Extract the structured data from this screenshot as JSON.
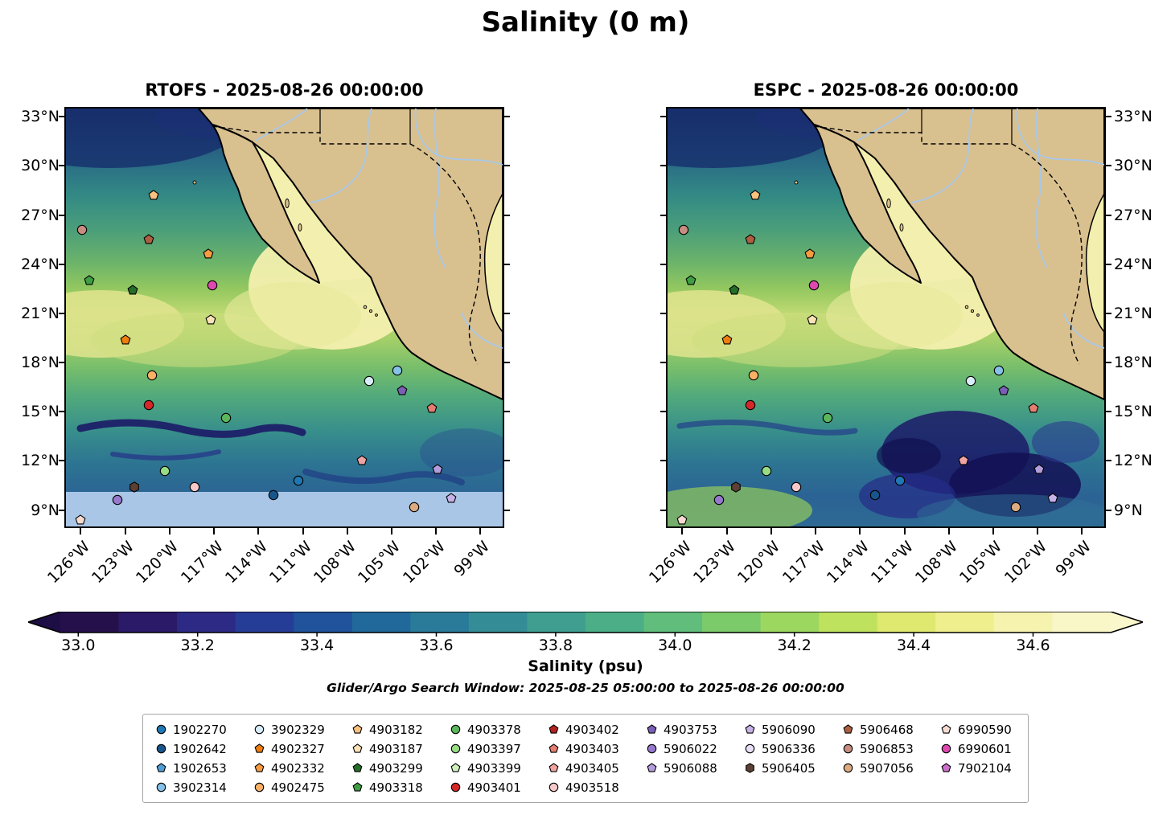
{
  "title": "Salinity (0 m)",
  "panels": [
    {
      "id": "rtofs",
      "title": "RTOFS - 2025-08-26 00:00:00"
    },
    {
      "id": "espc",
      "title": "ESPC - 2025-08-26 00:00:00"
    }
  ],
  "footer": {
    "search_window": "Glider/Argo Search Window: 2025-08-25 05:00:00 to 2025-08-26 00:00:00"
  },
  "chart_data": {
    "type": "heatmap",
    "overlay": "scatter",
    "description": "Sea-surface salinity (0 m) from two models (RTOFS and ESPC) over the eastern Pacific off Mexico and Baja California, with Argo float / glider positions overlaid",
    "lon_range": [
      -127,
      -97.5
    ],
    "lat_range": [
      8.0,
      33.5
    ],
    "xticks": [
      {
        "label": "126°W",
        "lon": -126
      },
      {
        "label": "123°W",
        "lon": -123
      },
      {
        "label": "120°W",
        "lon": -120
      },
      {
        "label": "117°W",
        "lon": -117
      },
      {
        "label": "114°W",
        "lon": -114
      },
      {
        "label": "111°W",
        "lon": -111
      },
      {
        "label": "108°W",
        "lon": -108
      },
      {
        "label": "105°W",
        "lon": -105
      },
      {
        "label": "102°W",
        "lon": -102
      },
      {
        "label": "99°W",
        "lon": -99
      }
    ],
    "yticks": [
      {
        "label": "33°N",
        "lat": 33
      },
      {
        "label": "30°N",
        "lat": 30
      },
      {
        "label": "27°N",
        "lat": 27
      },
      {
        "label": "24°N",
        "lat": 24
      },
      {
        "label": "21°N",
        "lat": 21
      },
      {
        "label": "18°N",
        "lat": 18
      },
      {
        "label": "15°N",
        "lat": 15
      },
      {
        "label": "12°N",
        "lat": 12
      },
      {
        "label": "9°N",
        "lat": 9
      }
    ],
    "colorbar": {
      "label": "Salinity (psu)",
      "vmin": 32.97,
      "vmax": 34.73,
      "under_color": "#1d0e45",
      "over_color": "#faf7cd",
      "tick_values": [
        33.0,
        33.2,
        33.4,
        33.6,
        33.8,
        34.0,
        34.2,
        34.4,
        34.6
      ],
      "tick_labels": [
        "33.0",
        "33.2",
        "33.4",
        "33.6",
        "33.8",
        "34.0",
        "34.2",
        "34.4",
        "34.6"
      ],
      "colors": [
        "#26104c",
        "#2b1a68",
        "#2d2a86",
        "#263d97",
        "#20539c",
        "#21689b",
        "#2a7b99",
        "#348d96",
        "#3f9e90",
        "#4bae87",
        "#60bd7b",
        "#7ccb6b",
        "#9cd75f",
        "#bfe25e",
        "#dfe970",
        "#f0ef8e",
        "#f6f3ae",
        "#f9f6c8"
      ]
    },
    "map_colors": {
      "land": "#d9c08f",
      "coastline": "#000000",
      "river": "#a9c8e9",
      "gulf_high_salinity": "#f3efae",
      "no_data_strip": "#a9c6e6"
    },
    "floats": [
      {
        "id": "1902270",
        "shape": "circle",
        "color": "#1f77b4",
        "lon": -111.3,
        "lat": 10.8
      },
      {
        "id": "1902642",
        "shape": "circle",
        "color": "#17568c",
        "lon": -113.0,
        "lat": 9.9
      },
      {
        "id": "1902653",
        "shape": "pentagon",
        "color": "#4f9fd4",
        "lon": null,
        "lat": null
      },
      {
        "id": "3902314",
        "shape": "circle",
        "color": "#85c1e9",
        "lon": -104.6,
        "lat": 17.5
      },
      {
        "id": "3902329",
        "shape": "circle",
        "color": "#d9ecf9",
        "lon": -106.5,
        "lat": 16.9
      },
      {
        "id": "4902327",
        "shape": "pentagon",
        "color": "#ee7f0e",
        "lon": -123.0,
        "lat": 19.4
      },
      {
        "id": "4902332",
        "shape": "pentagon",
        "color": "#f79b3f",
        "lon": -117.4,
        "lat": 24.6
      },
      {
        "id": "4902475",
        "shape": "circle",
        "color": "#fab166",
        "lon": -121.2,
        "lat": 17.2
      },
      {
        "id": "4903182",
        "shape": "pentagon",
        "color": "#fac17f",
        "lon": -121.1,
        "lat": 28.2
      },
      {
        "id": "4903187",
        "shape": "pentagon",
        "color": "#fbe3b9",
        "lon": -117.2,
        "lat": 20.6
      },
      {
        "id": "4903299",
        "shape": "pentagon",
        "color": "#256d29",
        "lon": -122.5,
        "lat": 22.4
      },
      {
        "id": "4903318",
        "shape": "pentagon",
        "color": "#3f9e42",
        "lon": -125.4,
        "lat": 23.0
      },
      {
        "id": "4903378",
        "shape": "circle",
        "color": "#5cb75c",
        "lon": -116.2,
        "lat": 14.6
      },
      {
        "id": "4903397",
        "shape": "circle",
        "color": "#97dd85",
        "lon": -120.3,
        "lat": 11.4
      },
      {
        "id": "4903399",
        "shape": "pentagon",
        "color": "#cdf0bd",
        "lon": null,
        "lat": null
      },
      {
        "id": "4903401",
        "shape": "circle",
        "color": "#d62728",
        "lon": -121.4,
        "lat": 15.4
      },
      {
        "id": "4903402",
        "shape": "pentagon",
        "color": "#b22222",
        "lon": null,
        "lat": null
      },
      {
        "id": "4903403",
        "shape": "pentagon",
        "color": "#e57d72",
        "lon": -102.3,
        "lat": 15.2
      },
      {
        "id": "4903405",
        "shape": "pentagon",
        "color": "#f0a3a3",
        "lon": -107.0,
        "lat": 12.0
      },
      {
        "id": "4903518",
        "shape": "circle",
        "color": "#f7c9c9",
        "lon": -118.3,
        "lat": 10.4
      },
      {
        "id": "4903753",
        "shape": "pentagon",
        "color": "#7a5fb5",
        "lon": -104.3,
        "lat": 16.3
      },
      {
        "id": "5906022",
        "shape": "circle",
        "color": "#9678cc",
        "lon": -123.5,
        "lat": 9.6
      },
      {
        "id": "5906088",
        "shape": "pentagon",
        "color": "#b49ddd",
        "lon": -101.9,
        "lat": 11.5
      },
      {
        "id": "5906090",
        "shape": "pentagon",
        "color": "#c7b2e8",
        "lon": -101.0,
        "lat": 9.7
      },
      {
        "id": "5906336",
        "shape": "circle",
        "color": "#e8def5",
        "lon": null,
        "lat": null
      },
      {
        "id": "5906405",
        "shape": "hexagon",
        "color": "#5d4034",
        "lon": -122.4,
        "lat": 10.4
      },
      {
        "id": "5906468",
        "shape": "pentagon",
        "color": "#ad5f41",
        "lon": -121.4,
        "lat": 25.5
      },
      {
        "id": "5906853",
        "shape": "circle",
        "color": "#c68d80",
        "lon": -125.9,
        "lat": 26.1
      },
      {
        "id": "5907056",
        "shape": "circle",
        "color": "#ddab80",
        "lon": -103.5,
        "lat": 9.2
      },
      {
        "id": "6990590",
        "shape": "pentagon",
        "color": "#f6dcd0",
        "lon": -126.0,
        "lat": 8.4
      },
      {
        "id": "6990601",
        "shape": "circle",
        "color": "#df48b0",
        "lon": -117.1,
        "lat": 22.7
      },
      {
        "id": "7902104",
        "shape": "pentagon",
        "color": "#cc70cc",
        "lon": null,
        "lat": null
      }
    ],
    "legend_columns": [
      [
        "1902270",
        "1902642",
        "1902653",
        "3902314"
      ],
      [
        "3902329",
        "4902327",
        "4902332",
        "4902475"
      ],
      [
        "4903182",
        "4903187",
        "4903299",
        "4903318"
      ],
      [
        "4903378",
        "4903397",
        "4903399",
        "4903401"
      ],
      [
        "4903402",
        "4903403",
        "4903405",
        "4903518"
      ],
      [
        "4903753",
        "5906022",
        "5906088"
      ],
      [
        "5906090",
        "5906336",
        "5906405"
      ],
      [
        "5906468",
        "5906853",
        "5907056"
      ],
      [
        "6990590",
        "6990601",
        "7902104"
      ]
    ]
  }
}
